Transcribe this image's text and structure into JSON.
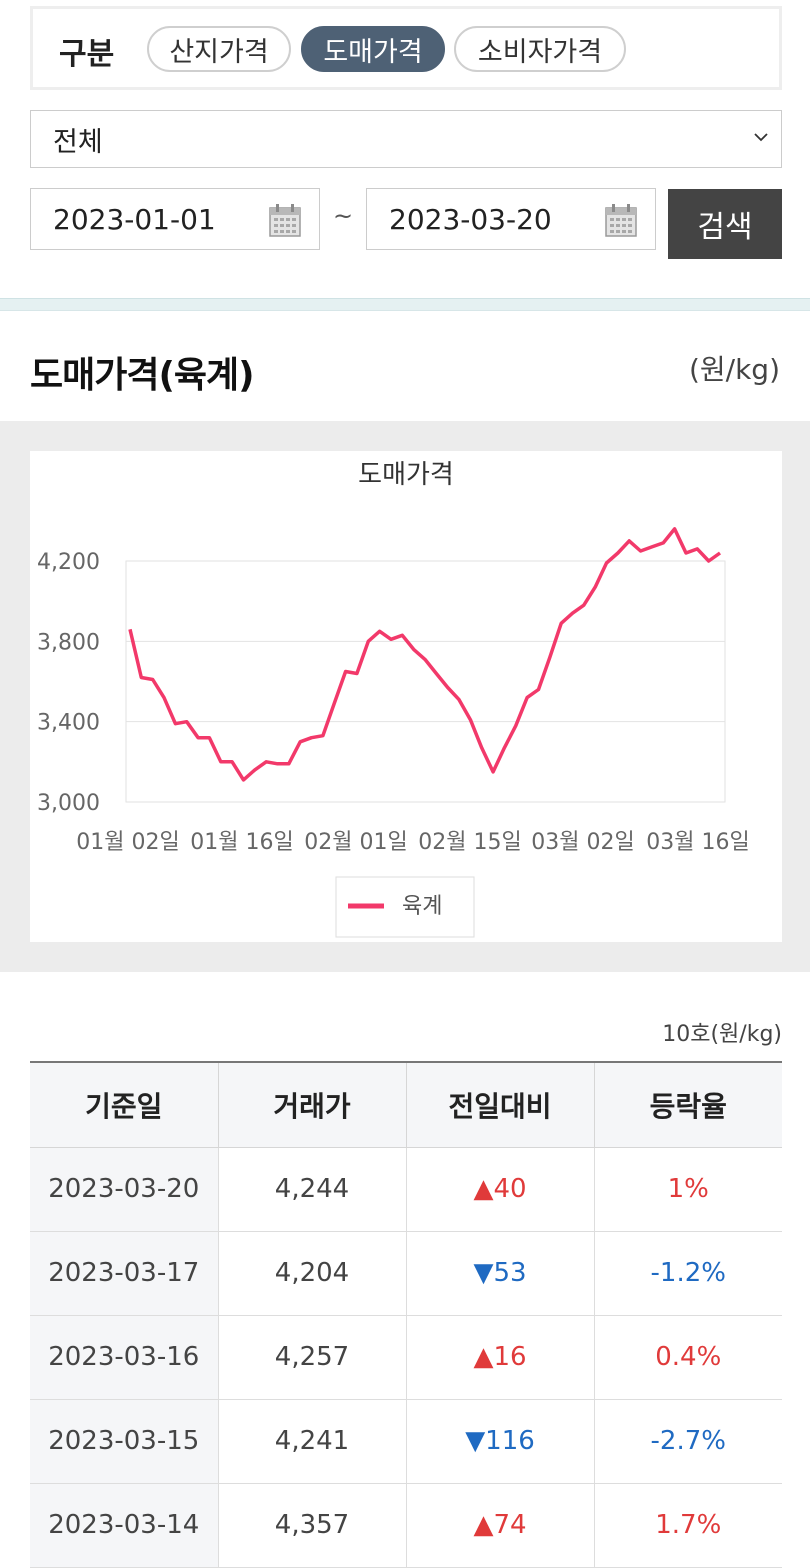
{
  "filter": {
    "label": "구분",
    "tabs": [
      {
        "label": "산지가격",
        "active": false
      },
      {
        "label": "도매가격",
        "active": true
      },
      {
        "label": "소비자가격",
        "active": false
      }
    ]
  },
  "product_select": {
    "value": "전체"
  },
  "date_range": {
    "start": "2023-01-01",
    "separator": "~",
    "end": "2023-03-20",
    "search_label": "검색"
  },
  "section": {
    "title": "도매가격(육계)",
    "unit": "(원/kg)"
  },
  "chart_data": {
    "type": "line",
    "title": "도매가격",
    "ylim": [
      3000,
      4200
    ],
    "yticks": [
      "4,200",
      "3,800",
      "3,400",
      "3,000"
    ],
    "xticks": [
      "01월 02일",
      "01월 16일",
      "02월 01일",
      "02월 15일",
      "03월 02일",
      "03월 16일"
    ],
    "legend": "bottom",
    "series": [
      {
        "name": "육계",
        "color": "#f2396a",
        "values": [
          3860,
          3620,
          3610,
          3520,
          3390,
          3400,
          3320,
          3320,
          3200,
          3200,
          3110,
          3160,
          3200,
          3190,
          3190,
          3300,
          3320,
          3330,
          3490,
          3650,
          3640,
          3800,
          3850,
          3810,
          3830,
          3760,
          3710,
          3640,
          3570,
          3510,
          3410,
          3270,
          3150,
          3270,
          3380,
          3520,
          3560,
          3720,
          3890,
          3940,
          3980,
          4070,
          4190,
          4240,
          4300,
          4250,
          4270,
          4290,
          4360,
          4240,
          4260,
          4200,
          4240
        ]
      }
    ]
  },
  "table": {
    "unit": "10호(원/kg)",
    "headers": [
      "기준일",
      "거래가",
      "전일대비",
      "등락율"
    ],
    "rows": [
      {
        "date": "2023-03-20",
        "price": "4,244",
        "change": "▲40",
        "rate": "1%",
        "dir": "up"
      },
      {
        "date": "2023-03-17",
        "price": "4,204",
        "change": "▼53",
        "rate": "-1.2%",
        "dir": "down"
      },
      {
        "date": "2023-03-16",
        "price": "4,257",
        "change": "▲16",
        "rate": "0.4%",
        "dir": "up"
      },
      {
        "date": "2023-03-15",
        "price": "4,241",
        "change": "▼116",
        "rate": "-2.7%",
        "dir": "down"
      },
      {
        "date": "2023-03-14",
        "price": "4,357",
        "change": "▲74",
        "rate": "1.7%",
        "dir": "up"
      }
    ]
  }
}
